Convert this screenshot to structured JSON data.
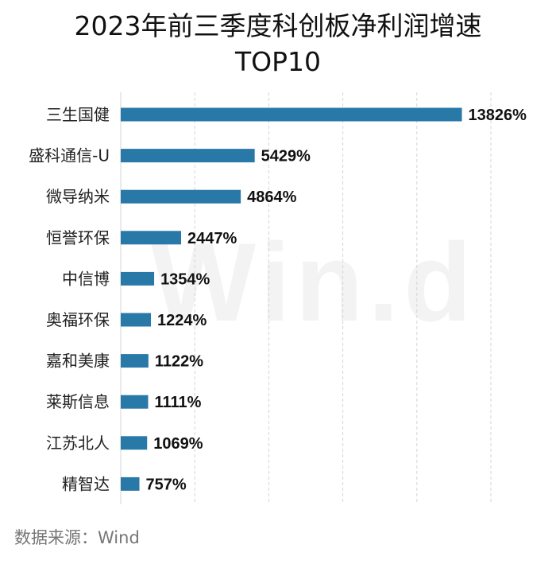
{
  "title_line1": "2023年前三季度科创板净利润增速",
  "title_line2": "TOP10",
  "watermark": "Win.d",
  "source": "数据来源：Wind",
  "colors": {
    "bar": "#2878a8",
    "grid": "#d4d4d4"
  },
  "chart_data": {
    "type": "bar",
    "orientation": "horizontal",
    "title": "2023年前三季度科创板净利润增速 TOP10",
    "categories": [
      "三生国健",
      "盛科通信-U",
      "微导纳米",
      "恒誉环保",
      "中信博",
      "奥福环保",
      "嘉和美康",
      "莱斯信息",
      "江苏北人",
      "精智达"
    ],
    "values": [
      13826,
      5429,
      4864,
      2447,
      1354,
      1224,
      1122,
      1111,
      1069,
      757
    ],
    "value_labels": [
      "13826%",
      "5429%",
      "4864%",
      "2447%",
      "1354%",
      "1224%",
      "1122%",
      "1111%",
      "1069%",
      "757%"
    ],
    "unit": "%",
    "xlim": [
      0,
      15000
    ],
    "grid": true,
    "legend": "none"
  }
}
